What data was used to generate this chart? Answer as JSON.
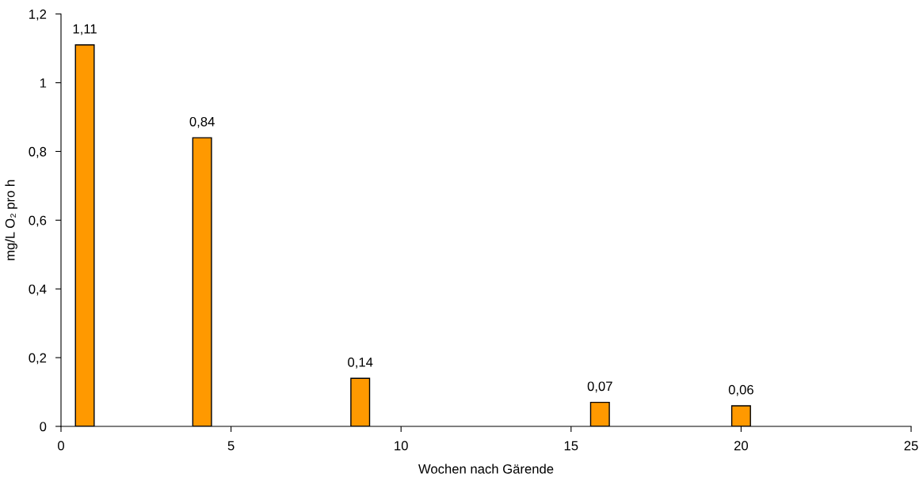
{
  "chart_data": {
    "type": "bar",
    "xlabel": "Wochen nach Gärende",
    "ylabel": "mg/L O₂ pro h",
    "x": [
      0.7,
      4.15,
      8.8,
      15.85,
      20
    ],
    "values": [
      1.11,
      0.84,
      0.14,
      0.07,
      0.06
    ],
    "value_labels": [
      "1,11",
      "0,84",
      "0,14",
      "0,07",
      "0,06"
    ],
    "color": "#ff9900",
    "xlim": [
      0,
      25
    ],
    "xticks": [
      0,
      5,
      10,
      15,
      20,
      25
    ],
    "ylim": [
      0,
      1.2
    ],
    "yticks": [
      {
        "value": 0,
        "label": "0"
      },
      {
        "value": 0.2,
        "label": "0,2"
      },
      {
        "value": 0.4,
        "label": "0,4"
      },
      {
        "value": 0.6,
        "label": "0,6"
      },
      {
        "value": 0.8,
        "label": "0,8"
      },
      {
        "value": 1,
        "label": "1"
      },
      {
        "value": 1.2,
        "label": "1,2"
      }
    ],
    "grid": false,
    "legend": false
  }
}
